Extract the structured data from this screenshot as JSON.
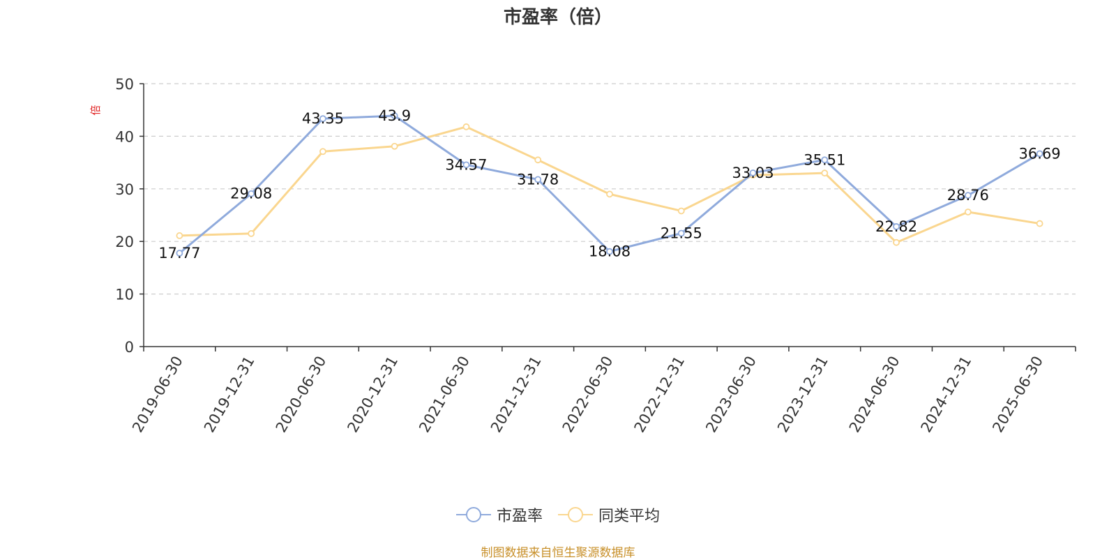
{
  "chart_data": {
    "type": "line",
    "title": "市盈率（倍）",
    "ylabel": "倍",
    "xlabel": "",
    "categories": [
      "2019-06-30",
      "2019-12-31",
      "2020-06-30",
      "2020-12-31",
      "2021-06-30",
      "2021-12-31",
      "2022-06-30",
      "2022-12-31",
      "2023-06-30",
      "2023-12-31",
      "2024-06-30",
      "2024-12-31",
      "2025-06-30"
    ],
    "ylim": [
      0,
      50
    ],
    "yticks": [
      0,
      10,
      20,
      30,
      40,
      50
    ],
    "grid": true,
    "legend_position": "bottom",
    "series": [
      {
        "name": "市盈率",
        "color": "#8faadc",
        "values": [
          17.77,
          29.08,
          43.35,
          43.9,
          34.57,
          31.78,
          18.08,
          21.55,
          33.03,
          35.51,
          22.82,
          28.76,
          36.69
        ],
        "labels": [
          "17.77",
          "29.08",
          "43.35",
          "43.9",
          "34.57",
          "31.78",
          "18.08",
          "21.55",
          "33.03",
          "35.51",
          "22.82",
          "28.76",
          "36.69"
        ]
      },
      {
        "name": "同类平均",
        "color": "#fad68f",
        "values": [
          21.1,
          21.5,
          37.1,
          38.1,
          41.8,
          35.5,
          29.0,
          25.8,
          32.6,
          33.0,
          19.8,
          25.6,
          23.4
        ]
      }
    ]
  },
  "source_note": "制图数据来自恒生聚源数据库"
}
